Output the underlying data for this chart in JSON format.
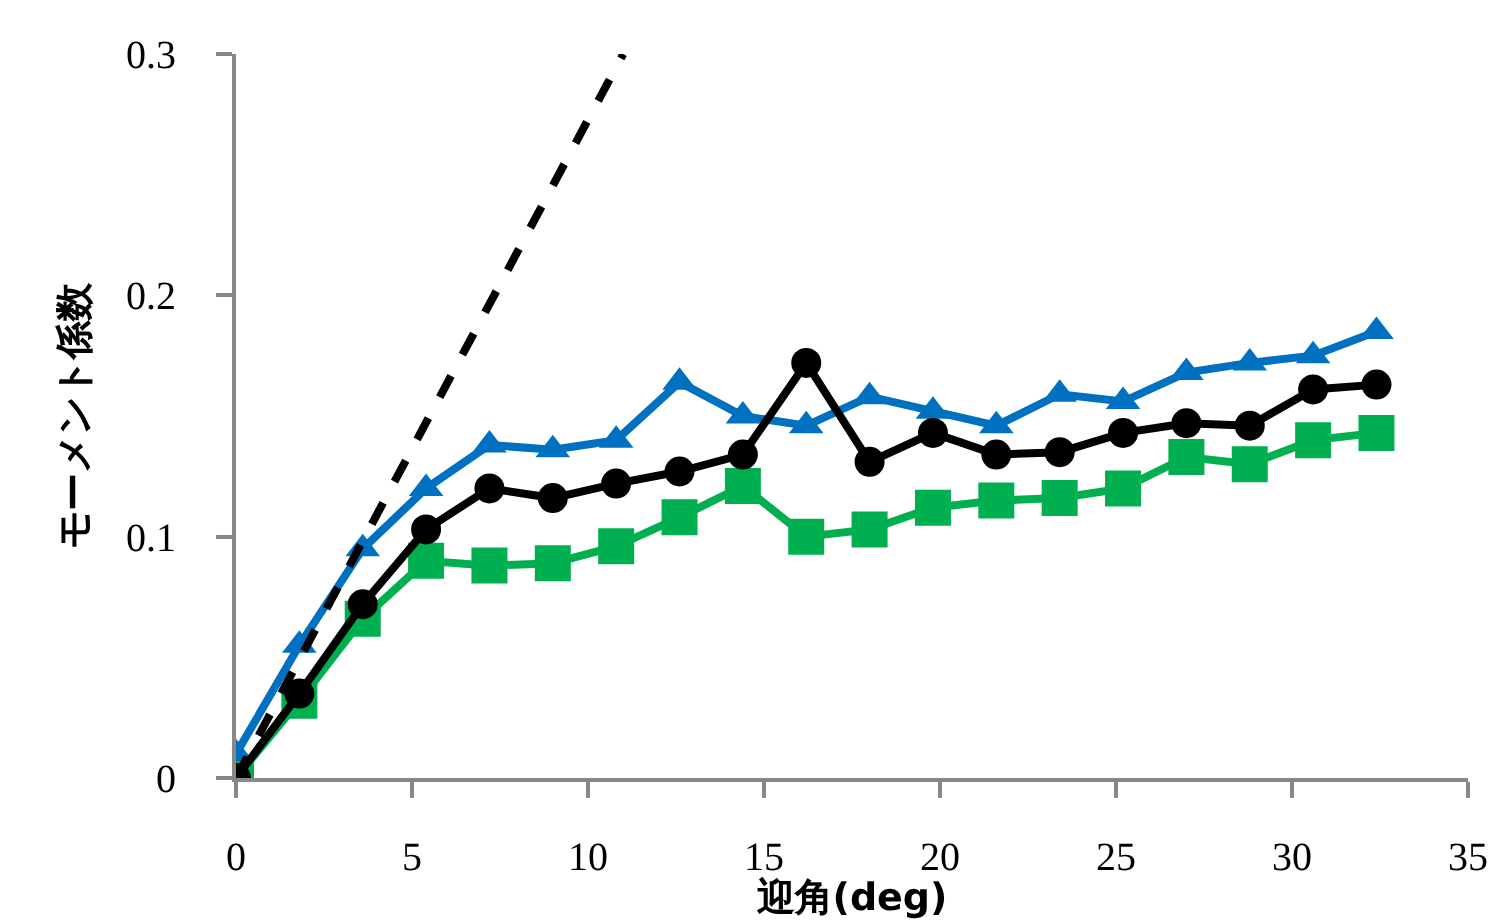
{
  "chart_data": {
    "type": "line",
    "xlabel": "迎角(deg)",
    "ylabel": "モーメント係数",
    "x": [
      0,
      1.8,
      3.6,
      5.4,
      7.2,
      9,
      10.8,
      12.6,
      14.4,
      16.2,
      18,
      19.8,
      21.6,
      23.4,
      25.2,
      27,
      28.8,
      30.6,
      32.4
    ],
    "series": [
      {
        "color": "#00b050",
        "marker": "square",
        "values": [
          0,
          0.032,
          0.066,
          0.09,
          0.088,
          0.089,
          0.096,
          0.108,
          0.121,
          0.1,
          0.103,
          0.112,
          0.115,
          0.116,
          0.12,
          0.133,
          0.13,
          0.14,
          0.143
        ]
      },
      {
        "color": "#0070c0",
        "marker": "triangle",
        "values": [
          0.01,
          0.055,
          0.095,
          0.12,
          0.138,
          0.136,
          0.14,
          0.164,
          0.15,
          0.146,
          0.158,
          0.152,
          0.146,
          0.159,
          0.156,
          0.168,
          0.172,
          0.175,
          0.185
        ]
      },
      {
        "color": "#000000",
        "marker": "circle",
        "values": [
          0,
          0.035,
          0.072,
          0.103,
          0.12,
          0.116,
          0.122,
          0.127,
          0.134,
          0.172,
          0.131,
          0.143,
          0.134,
          0.135,
          0.143,
          0.147,
          0.146,
          0.161,
          0.163
        ]
      },
      {
        "color": "#000000",
        "marker": "none",
        "line_style": "dashed",
        "x": [
          0,
          11
        ],
        "values": [
          0,
          0.3
        ]
      }
    ],
    "xlim": [
      0,
      35
    ],
    "xticks": [
      0,
      5,
      10,
      15,
      20,
      25,
      30,
      35
    ],
    "ylim": [
      0,
      0.3
    ],
    "yticks": [
      0,
      0.1,
      0.2,
      0.3
    ],
    "grid": false
  }
}
